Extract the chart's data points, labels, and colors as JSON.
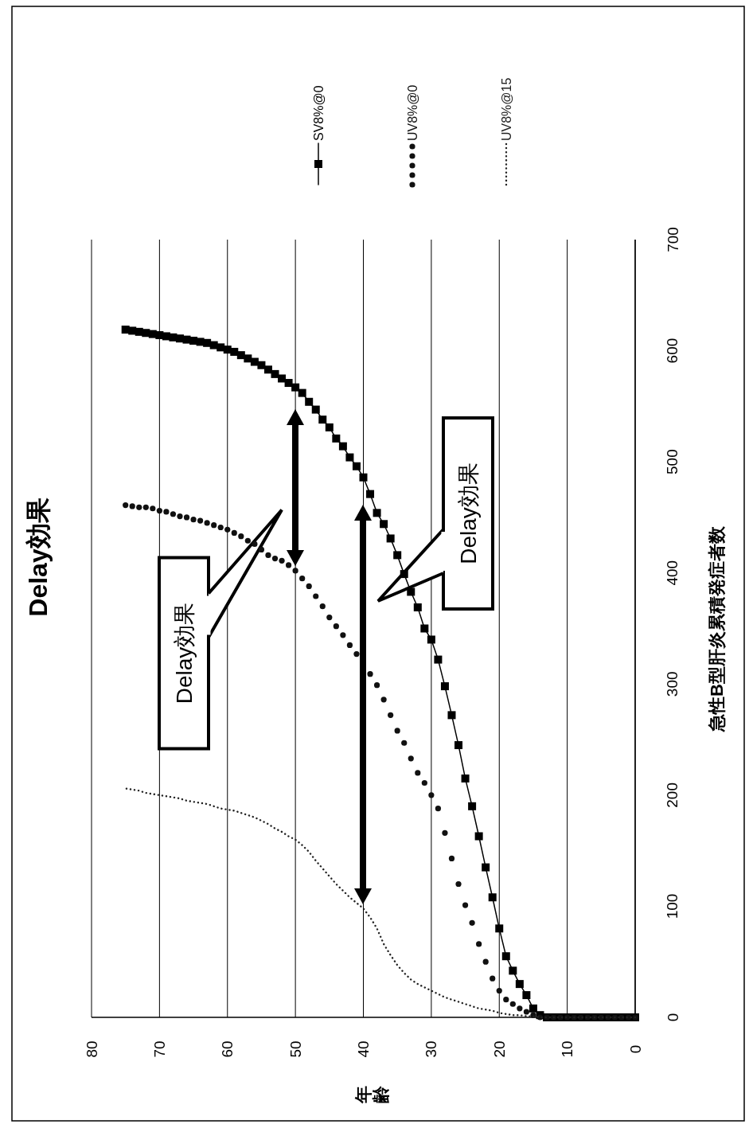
{
  "chart_data": {
    "type": "line",
    "title": "Delay効果",
    "xlabel": "年齢",
    "ylabel": "急性B型肝炎累積発症者数",
    "x": [
      0,
      1,
      2,
      3,
      4,
      5,
      6,
      7,
      8,
      9,
      10,
      11,
      12,
      13,
      14,
      15,
      16,
      17,
      18,
      19,
      20,
      21,
      22,
      23,
      24,
      25,
      26,
      27,
      28,
      29,
      30,
      31,
      32,
      33,
      34,
      35,
      36,
      37,
      38,
      39,
      40,
      41,
      42,
      43,
      44,
      45,
      46,
      47,
      48,
      49,
      50,
      51,
      52,
      53,
      54,
      55,
      56,
      57,
      58,
      59,
      60,
      61,
      62,
      63,
      64,
      65,
      66,
      67,
      68,
      69,
      70,
      71,
      72,
      73,
      74,
      75
    ],
    "xlim": [
      80,
      0
    ],
    "xticks": [
      80,
      70,
      60,
      50,
      40,
      30,
      20,
      10,
      0
    ],
    "ylim": [
      0,
      700
    ],
    "yticks": [
      0,
      100,
      200,
      300,
      400,
      500,
      600,
      700
    ],
    "grid": "x",
    "legend": "top",
    "series": [
      {
        "name": "SV8%@0",
        "color": "#000000",
        "marker": "square",
        "line_style": "solid",
        "values": [
          0,
          0,
          0,
          0,
          0,
          0,
          0,
          0,
          0,
          0,
          0,
          0,
          0,
          0,
          2,
          8,
          20,
          30,
          42,
          55,
          80,
          108,
          135,
          163,
          190,
          215,
          245,
          272,
          298,
          322,
          340,
          350,
          369,
          383,
          399,
          416,
          431,
          444,
          454,
          471,
          486,
          496,
          504,
          514,
          521,
          531,
          538,
          547,
          554,
          562,
          567,
          571,
          575,
          579,
          583,
          587,
          590,
          593,
          596,
          599,
          601,
          603,
          605,
          607,
          608,
          609,
          610,
          611,
          612,
          613,
          614,
          615,
          616,
          617,
          618,
          619
        ]
      },
      {
        "name": "UV8%@0",
        "type": "scatter",
        "color": "#111111",
        "marker": "circle",
        "values": [
          0,
          0,
          0,
          0,
          0,
          0,
          0,
          0,
          0,
          0,
          0,
          0,
          0,
          0,
          0,
          2,
          5,
          8,
          12,
          16,
          24,
          35,
          50,
          66,
          85,
          101,
          120,
          143,
          166,
          188,
          200,
          211,
          220,
          233,
          247,
          258,
          272,
          286,
          299,
          309,
          null,
          327,
          335,
          344,
          352,
          360,
          370,
          379,
          388,
          395,
          402,
          407,
          411,
          413,
          416,
          421,
          426,
          429,
          433,
          436,
          439,
          441,
          443,
          445,
          447,
          448,
          450,
          451,
          453,
          455,
          456,
          458,
          459,
          459,
          460,
          461
        ]
      },
      {
        "name": "UV8%@15",
        "color": "#222222",
        "line_style": "dotted",
        "values": [
          0,
          0,
          0,
          0,
          0,
          0,
          0,
          0,
          0,
          0,
          0,
          0,
          0,
          0,
          0,
          1,
          1,
          2,
          2,
          3,
          4,
          6,
          7,
          8,
          10,
          12,
          14,
          16,
          18,
          21,
          24,
          27,
          30,
          34,
          40,
          47,
          56,
          66,
          80,
          90,
          98,
          103,
          108,
          114,
          120,
          127,
          134,
          141,
          149,
          155,
          160,
          163,
          167,
          170,
          174,
          177,
          180,
          182,
          184,
          186,
          187,
          188,
          190,
          192,
          193,
          194,
          195,
          197,
          198,
          199,
          200,
          201,
          202,
          204,
          205,
          206
        ]
      }
    ],
    "annotations": [
      "Delay効果",
      "Delay効果"
    ]
  }
}
